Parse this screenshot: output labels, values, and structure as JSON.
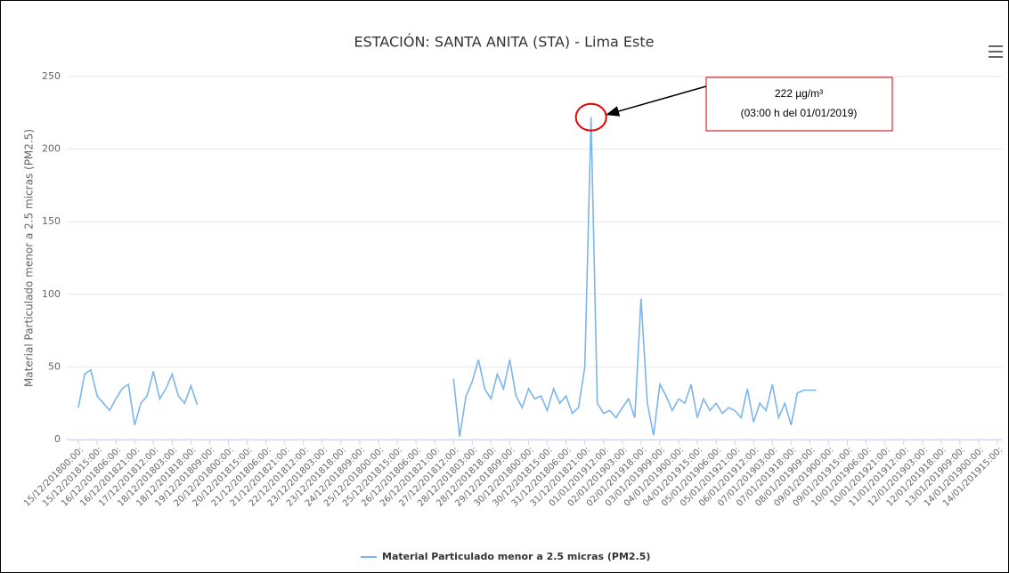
{
  "chart_data": {
    "type": "line",
    "title": "ESTACIÓN: SANTA ANITA (STA) - Lima Este",
    "y_label": "Material Particulado menor a 2.5 micras (PM2.5)",
    "annotation": {
      "value": 222,
      "label": "222 µg/m³",
      "text": "(03:00 h del 01/01/2019)",
      "index": 82
    },
    "categories": [
      "15/12/201800:00:",
      null,
      null,
      "15/12/201815:00:",
      null,
      null,
      "16/12/201806:00:",
      null,
      null,
      "16/12/201821:00:",
      null,
      null,
      "17/12/201812:00:",
      null,
      null,
      "18/12/201803:00:",
      null,
      null,
      "18/12/201818:00:",
      null,
      null,
      "19/12/201809:00:",
      null,
      null,
      "20/12/201800:00:",
      null,
      null,
      "20/12/201815:00:",
      null,
      null,
      "21/12/201806:00:",
      null,
      null,
      "21/12/201821:00:",
      null,
      null,
      "22/12/201812:00:",
      null,
      null,
      "23/12/201803:00:",
      null,
      null,
      "23/12/201818:00:",
      null,
      null,
      "24/12/201809:00:",
      null,
      null,
      "25/12/201800:00:",
      null,
      null,
      "25/12/201815:00:",
      null,
      null,
      "26/12/201806:00:",
      null,
      null,
      "26/12/201821:00:",
      null,
      null,
      "27/12/201812:00:",
      null,
      null,
      "28/12/201803:00:",
      null,
      null,
      "28/12/201818:00:",
      null,
      null,
      "29/12/201809:00:",
      null,
      null,
      "30/12/201800:00:",
      null,
      null,
      "30/12/201815:00:",
      null,
      null,
      "31/12/201806:00:",
      null,
      null,
      "31/12/201821:00:",
      null,
      null,
      "01/01/201912:00:",
      null,
      null,
      "02/01/201903:00:",
      null,
      null,
      "02/01/201918:00:",
      null,
      null,
      "03/01/201909:00:",
      null,
      null,
      "04/01/201900:00:",
      null,
      null,
      "04/01/201915:00:",
      null,
      null,
      "05/01/201906:00:",
      null,
      null,
      "05/01/201921:00:",
      null,
      null,
      "06/01/201912:00:",
      null,
      null,
      "07/01/201903:00:",
      null,
      null,
      "07/01/201918:00:",
      null,
      null,
      "08/01/201909:00:",
      null,
      null,
      "09/01/201900:00:",
      null,
      null,
      "09/01/201915:00:",
      null,
      null,
      "10/01/201906:00:",
      null,
      null,
      "10/01/201921:00:",
      null,
      null,
      "11/01/201912:00:",
      null,
      null,
      "12/01/201903:00:",
      null,
      null,
      "12/01/201918:00:",
      null,
      null,
      "13/01/201909:00:",
      null,
      null,
      "14/01/201900:00:",
      null,
      null,
      "14/01/201915:00:",
      null,
      null
    ],
    "series": [
      {
        "name": "Material Particulado menor a 2.5 micras (PM2.5)",
        "color": "#7cb5ec",
        "values": [
          22,
          45,
          48,
          30,
          25,
          20,
          28,
          35,
          38,
          10,
          25,
          30,
          47,
          28,
          35,
          45,
          30,
          25,
          37,
          24,
          null,
          null,
          null,
          null,
          null,
          null,
          null,
          null,
          null,
          null,
          null,
          null,
          null,
          null,
          null,
          null,
          null,
          null,
          null,
          null,
          null,
          null,
          null,
          null,
          null,
          null,
          null,
          null,
          null,
          null,
          null,
          null,
          null,
          null,
          null,
          null,
          null,
          null,
          null,
          null,
          42,
          2,
          30,
          40,
          55,
          35,
          28,
          45,
          35,
          55,
          30,
          22,
          35,
          28,
          30,
          20,
          35,
          25,
          30,
          18,
          22,
          50,
          222,
          25,
          18,
          20,
          15,
          22,
          28,
          15,
          97,
          25,
          3,
          38,
          30,
          20,
          28,
          25,
          38,
          15,
          28,
          20,
          25,
          18,
          22,
          20,
          15,
          35,
          12,
          25,
          20,
          38,
          15,
          25,
          10,
          32,
          34,
          34,
          34,
          null,
          null,
          null,
          null,
          null,
          null,
          null,
          null,
          null,
          null,
          null,
          null,
          null,
          null,
          null,
          null,
          null,
          null,
          null,
          null,
          null,
          null,
          null,
          null,
          null,
          null,
          null,
          null,
          null,
          null,
          null
        ]
      }
    ],
    "ylim": [
      0,
      250
    ],
    "yticks": [
      0,
      50,
      100,
      150,
      200,
      250
    ],
    "grid": true,
    "legend": "bottom"
  }
}
